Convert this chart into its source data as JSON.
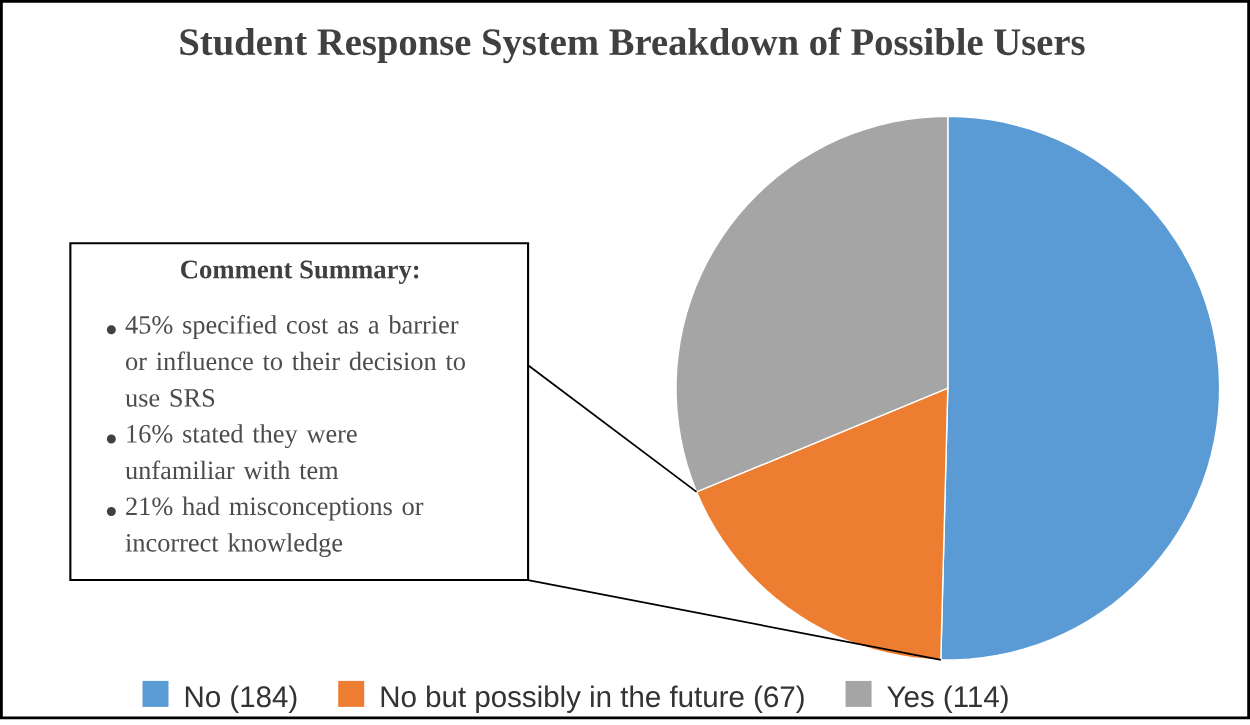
{
  "chart_data": {
    "type": "pie",
    "title": "Student Response System Breakdown of Possible Users",
    "categories": [
      "No (184)",
      "No but possibly in the future (67)",
      "Yes (114)"
    ],
    "values": [
      184,
      67,
      114
    ],
    "colors": [
      "#5b9bd5",
      "#ed7d31",
      "#a5a5a5"
    ],
    "legend": "bottom",
    "annotations": [
      "Comment Summary:",
      "45% specified cost as a barrier or influence to their decision to use SRS",
      "16% stated they were unfamiliar with tem",
      "21% had misconceptions or incorrect knowledge"
    ]
  }
}
